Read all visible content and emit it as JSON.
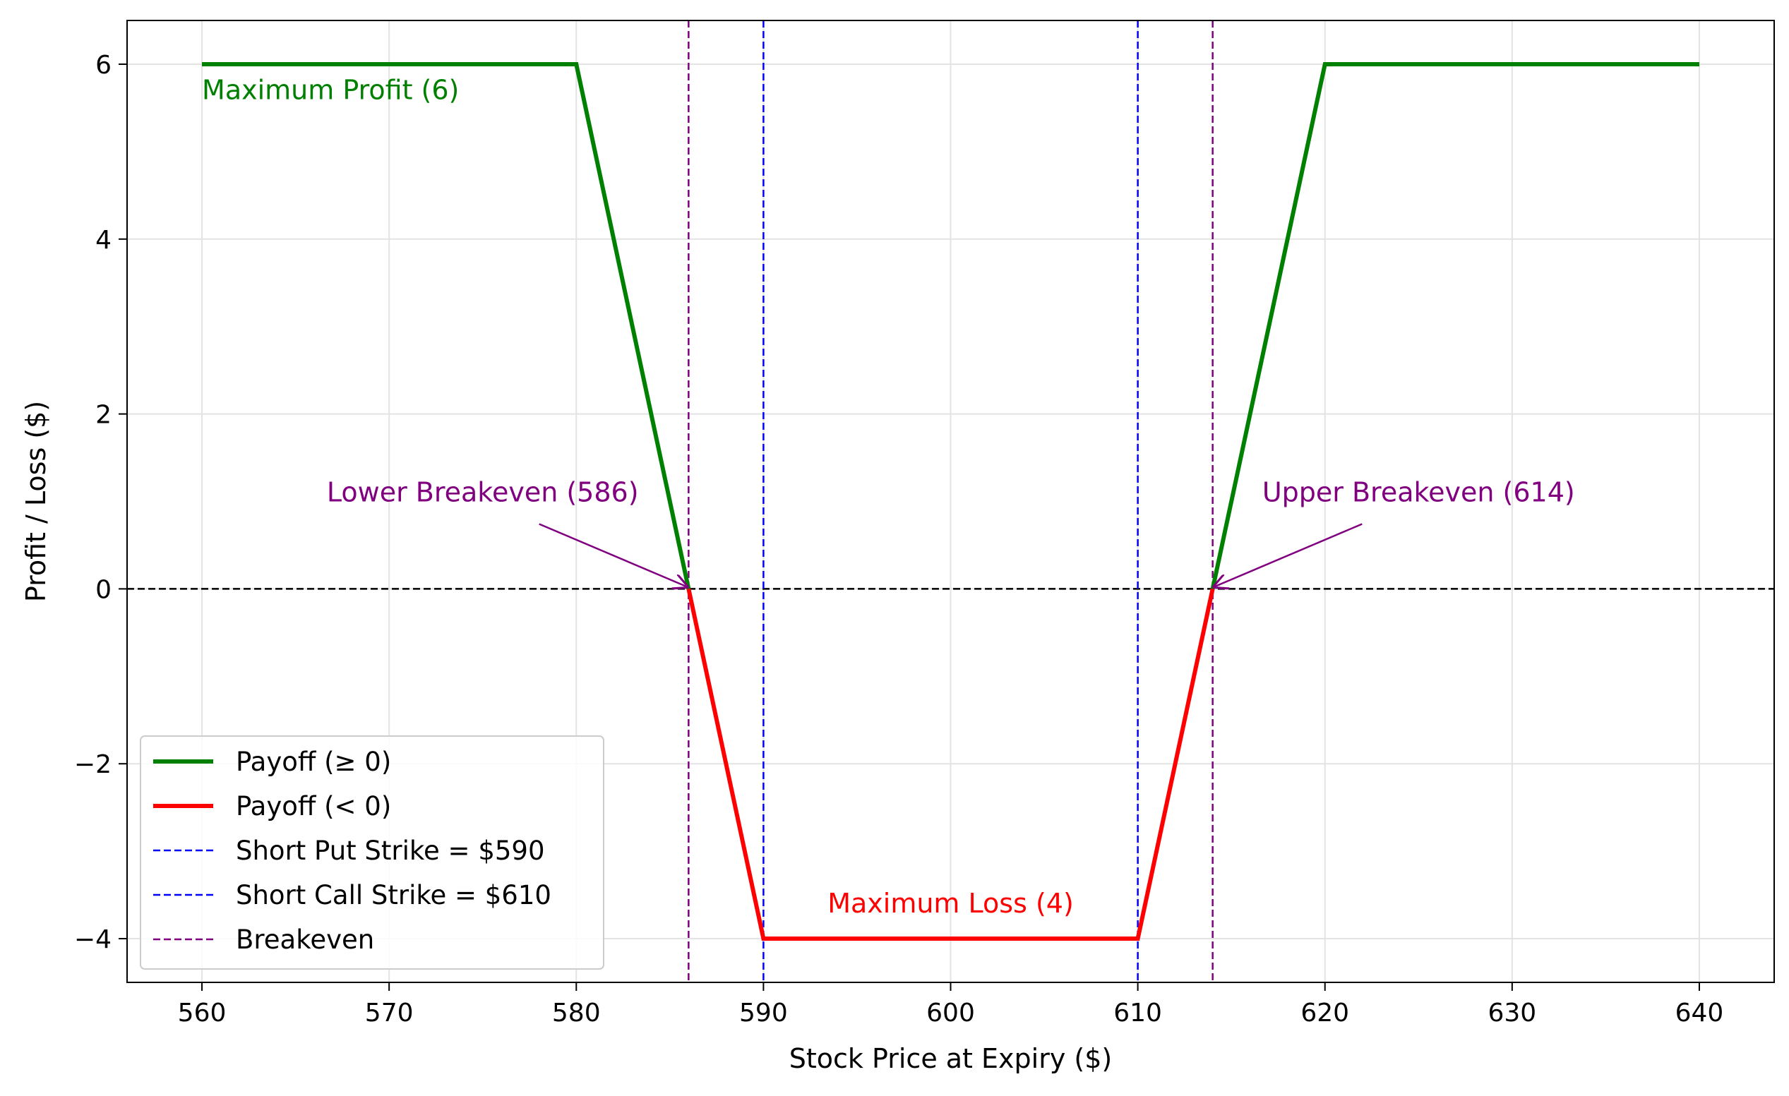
{
  "colors": {
    "profit": "#008000",
    "loss": "#ff0000",
    "strike": "#0000ff",
    "breakeven": "#800080",
    "zero_line": "#000000",
    "grid": "#e3e3e3",
    "axis": "#000000",
    "background": "#ffffff"
  },
  "chart_data": {
    "type": "line",
    "title": "",
    "xlabel": "Stock Price at Expiry ($)",
    "ylabel": "Profit / Loss ($)",
    "xlim": [
      556,
      644
    ],
    "ylim": [
      -4.5,
      6.5
    ],
    "grid": true,
    "legend_position": "lower-left",
    "xticks": [
      560,
      570,
      580,
      590,
      600,
      610,
      620,
      630,
      640
    ],
    "yticks": [
      6,
      4,
      2,
      0,
      -2,
      -4
    ],
    "xtick_labels": [
      "560",
      "570",
      "580",
      "590",
      "600",
      "610",
      "620",
      "630",
      "640"
    ],
    "ytick_labels": [
      "6",
      "4",
      "2",
      "0",
      "−2",
      "−4"
    ],
    "series": [
      {
        "name": "Payoff (≥ 0)",
        "color": "#008000",
        "style": "solid",
        "segments": [
          [
            [
              560,
              6
            ],
            [
              580,
              6
            ],
            [
              586,
              0
            ]
          ],
          [
            [
              614,
              0
            ],
            [
              620,
              6
            ],
            [
              640,
              6
            ]
          ]
        ]
      },
      {
        "name": "Payoff (< 0)",
        "color": "#ff0000",
        "style": "solid",
        "segments": [
          [
            [
              586,
              0
            ],
            [
              590,
              -4
            ],
            [
              610,
              -4
            ],
            [
              614,
              0
            ]
          ]
        ]
      }
    ],
    "vertical_lines": [
      {
        "name": "Short Put Strike = $590",
        "x": 590,
        "color": "#0000ff",
        "style": "dashed"
      },
      {
        "name": "Short Call Strike = $610",
        "x": 610,
        "color": "#0000ff",
        "style": "dashed"
      },
      {
        "name": "Breakeven",
        "x": 586,
        "color": "#800080",
        "style": "dashed"
      },
      {
        "name": "Breakeven",
        "x": 614,
        "color": "#800080",
        "style": "dashed"
      }
    ],
    "horizontal_lines": [
      {
        "y": 0,
        "color": "#000000",
        "style": "dashed"
      }
    ],
    "annotations": [
      {
        "text": "Maximum Profit (6)",
        "x": 560,
        "y": 5.6,
        "color": "#008000",
        "anchor": "start"
      },
      {
        "text": "Maximum Loss (4)",
        "x": 600,
        "y": -3.7,
        "color": "#ff0000",
        "anchor": "middle"
      },
      {
        "text": "Lower Breakeven (586)",
        "x": 575,
        "y": 1.0,
        "color": "#800080",
        "anchor": "middle",
        "arrow_to": [
          586,
          0
        ]
      },
      {
        "text": "Upper Breakeven (614)",
        "x": 625,
        "y": 1.0,
        "color": "#800080",
        "anchor": "middle",
        "arrow_to": [
          614,
          0
        ]
      }
    ],
    "legend": [
      {
        "label": "Payoff (≥ 0)",
        "color": "#008000",
        "style": "solid"
      },
      {
        "label": "Payoff (< 0)",
        "color": "#ff0000",
        "style": "solid"
      },
      {
        "label": "Short Put Strike = $590",
        "color": "#0000ff",
        "style": "dashed"
      },
      {
        "label": "Short Call Strike = $610",
        "color": "#0000ff",
        "style": "dashed"
      },
      {
        "label": "Breakeven",
        "color": "#800080",
        "style": "dashed"
      }
    ]
  }
}
